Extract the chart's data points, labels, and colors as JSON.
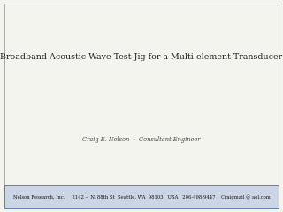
{
  "title": "Broadband Acoustic Wave Test Jig for a Multi-element Transducer",
  "subtitle": "Craig E. Nelson  -  Consultant Engineer",
  "footer": "Nelson Research, Inc.     2142 –  N. 88th St  Seattle, WA  98103   USA   206-498-9447    Craigmail @ aol.com",
  "bg_color": "#f4f4ef",
  "border_color": "#aaaaaa",
  "footer_bg": "#ccd5e5",
  "footer_border": "#6080aa",
  "title_color": "#222222",
  "subtitle_color": "#444444",
  "footer_color": "#111111",
  "title_fontsize": 6.8,
  "subtitle_fontsize": 4.8,
  "footer_fontsize": 3.8
}
